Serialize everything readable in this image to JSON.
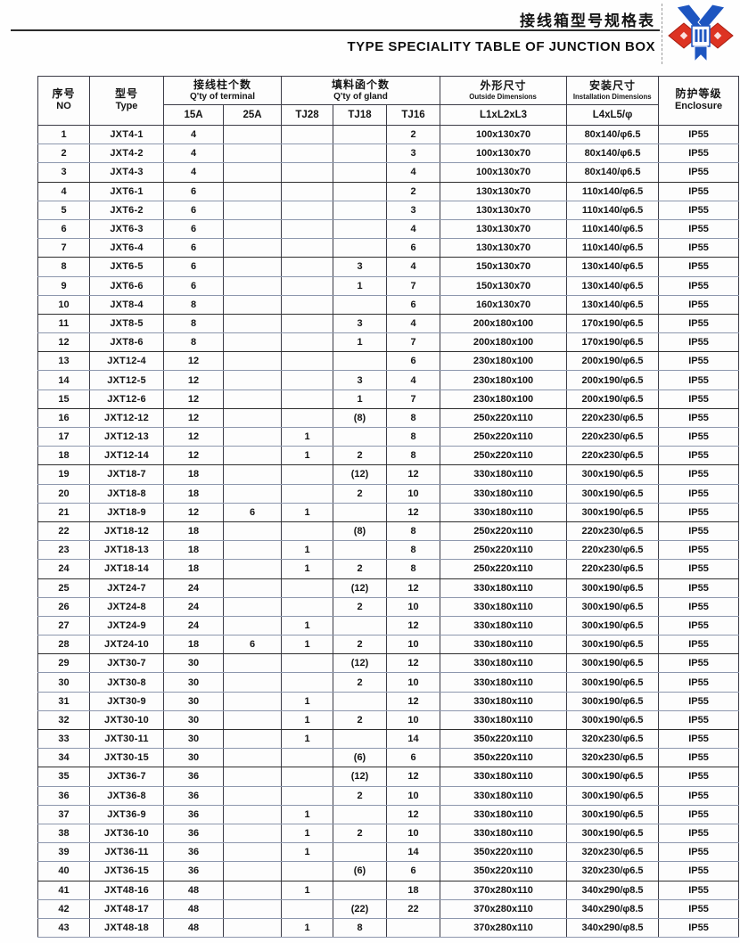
{
  "colors": {
    "text": "#141414",
    "grid_dark": "#3b3b46",
    "grid_light": "#8d97ad",
    "logo_red": "#dd3322",
    "logo_blue": "#1d55c0"
  },
  "header": {
    "title_zh": "接线箱型号规格表",
    "title_en": "TYPE SPECIALITY TABLE OF JUNCTION BOX",
    "logo_icon": "company-emblem"
  },
  "table": {
    "columns": {
      "no_zh": "序号",
      "no_en": "NO",
      "type_zh": "型号",
      "type_en": "Type",
      "terminal_zh": "接线柱个数",
      "terminal_en": "Q'ty of terminal",
      "terminal_subs": [
        "15A",
        "25A"
      ],
      "gland_zh": "填料函个数",
      "gland_en": "Q'ty of gland",
      "gland_subs": [
        "TJ28",
        "TJ18",
        "TJ16"
      ],
      "outside_zh": "外形尺寸",
      "outside_en": "Outside Dimensions",
      "outside_sub": "L1xL2xL3",
      "install_zh": "安装尺寸",
      "install_en": "Installation Dimensions",
      "install_sub": "L4xL5/φ",
      "enclosure_zh": "防护等级",
      "enclosure_en": "Enclosure"
    },
    "column_keys": [
      "no",
      "type",
      "15a",
      "25a",
      "tj28",
      "tj18",
      "tj16",
      "outside",
      "install",
      "enclosure"
    ],
    "heavy_border_after": [
      "3",
      "7",
      "10",
      "12",
      "15",
      "18",
      "21",
      "24",
      "28",
      "32",
      "34",
      "40"
    ],
    "rows": [
      [
        "1",
        "JXT4-1",
        "4",
        "",
        "",
        "",
        "2",
        "100x130x70",
        "80x140/φ6.5",
        "IP55"
      ],
      [
        "2",
        "JXT4-2",
        "4",
        "",
        "",
        "",
        "3",
        "100x130x70",
        "80x140/φ6.5",
        "IP55"
      ],
      [
        "3",
        "JXT4-3",
        "4",
        "",
        "",
        "",
        "4",
        "100x130x70",
        "80x140/φ6.5",
        "IP55"
      ],
      [
        "4",
        "JXT6-1",
        "6",
        "",
        "",
        "",
        "2",
        "130x130x70",
        "110x140/φ6.5",
        "IP55"
      ],
      [
        "5",
        "JXT6-2",
        "6",
        "",
        "",
        "",
        "3",
        "130x130x70",
        "110x140/φ6.5",
        "IP55"
      ],
      [
        "6",
        "JXT6-3",
        "6",
        "",
        "",
        "",
        "4",
        "130x130x70",
        "110x140/φ6.5",
        "IP55"
      ],
      [
        "7",
        "JXT6-4",
        "6",
        "",
        "",
        "",
        "6",
        "130x130x70",
        "110x140/φ6.5",
        "IP55"
      ],
      [
        "8",
        "JXT6-5",
        "6",
        "",
        "",
        "3",
        "4",
        "150x130x70",
        "130x140/φ6.5",
        "IP55"
      ],
      [
        "9",
        "JXT6-6",
        "6",
        "",
        "",
        "1",
        "7",
        "150x130x70",
        "130x140/φ6.5",
        "IP55"
      ],
      [
        "10",
        "JXT8-4",
        "8",
        "",
        "",
        "",
        "6",
        "160x130x70",
        "130x140/φ6.5",
        "IP55"
      ],
      [
        "11",
        "JXT8-5",
        "8",
        "",
        "",
        "3",
        "4",
        "200x180x100",
        "170x190/φ6.5",
        "IP55"
      ],
      [
        "12",
        "JXT8-6",
        "8",
        "",
        "",
        "1",
        "7",
        "200x180x100",
        "170x190/φ6.5",
        "IP55"
      ],
      [
        "13",
        "JXT12-4",
        "12",
        "",
        "",
        "",
        "6",
        "230x180x100",
        "200x190/φ6.5",
        "IP55"
      ],
      [
        "14",
        "JXT12-5",
        "12",
        "",
        "",
        "3",
        "4",
        "230x180x100",
        "200x190/φ6.5",
        "IP55"
      ],
      [
        "15",
        "JXT12-6",
        "12",
        "",
        "",
        "1",
        "7",
        "230x180x100",
        "200x190/φ6.5",
        "IP55"
      ],
      [
        "16",
        "JXT12-12",
        "12",
        "",
        "",
        "(8)",
        "8",
        "250x220x110",
        "220x230/φ6.5",
        "IP55"
      ],
      [
        "17",
        "JXT12-13",
        "12",
        "",
        "1",
        "",
        "8",
        "250x220x110",
        "220x230/φ6.5",
        "IP55"
      ],
      [
        "18",
        "JXT12-14",
        "12",
        "",
        "1",
        "2",
        "8",
        "250x220x110",
        "220x230/φ6.5",
        "IP55"
      ],
      [
        "19",
        "JXT18-7",
        "18",
        "",
        "",
        "(12)",
        "12",
        "330x180x110",
        "300x190/φ6.5",
        "IP55"
      ],
      [
        "20",
        "JXT18-8",
        "18",
        "",
        "",
        "2",
        "10",
        "330x180x110",
        "300x190/φ6.5",
        "IP55"
      ],
      [
        "21",
        "JXT18-9",
        "12",
        "6",
        "1",
        "",
        "12",
        "330x180x110",
        "300x190/φ6.5",
        "IP55"
      ],
      [
        "22",
        "JXT18-12",
        "18",
        "",
        "",
        "(8)",
        "8",
        "250x220x110",
        "220x230/φ6.5",
        "IP55"
      ],
      [
        "23",
        "JXT18-13",
        "18",
        "",
        "1",
        "",
        "8",
        "250x220x110",
        "220x230/φ6.5",
        "IP55"
      ],
      [
        "24",
        "JXT18-14",
        "18",
        "",
        "1",
        "2",
        "8",
        "250x220x110",
        "220x230/φ6.5",
        "IP55"
      ],
      [
        "25",
        "JXT24-7",
        "24",
        "",
        "",
        "(12)",
        "12",
        "330x180x110",
        "300x190/φ6.5",
        "IP55"
      ],
      [
        "26",
        "JXT24-8",
        "24",
        "",
        "",
        "2",
        "10",
        "330x180x110",
        "300x190/φ6.5",
        "IP55"
      ],
      [
        "27",
        "JXT24-9",
        "24",
        "",
        "1",
        "",
        "12",
        "330x180x110",
        "300x190/φ6.5",
        "IP55"
      ],
      [
        "28",
        "JXT24-10",
        "18",
        "6",
        "1",
        "2",
        "10",
        "330x180x110",
        "300x190/φ6.5",
        "IP55"
      ],
      [
        "29",
        "JXT30-7",
        "30",
        "",
        "",
        "(12)",
        "12",
        "330x180x110",
        "300x190/φ6.5",
        "IP55"
      ],
      [
        "30",
        "JXT30-8",
        "30",
        "",
        "",
        "2",
        "10",
        "330x180x110",
        "300x190/φ6.5",
        "IP55"
      ],
      [
        "31",
        "JXT30-9",
        "30",
        "",
        "1",
        "",
        "12",
        "330x180x110",
        "300x190/φ6.5",
        "IP55"
      ],
      [
        "32",
        "JXT30-10",
        "30",
        "",
        "1",
        "2",
        "10",
        "330x180x110",
        "300x190/φ6.5",
        "IP55"
      ],
      [
        "33",
        "JXT30-11",
        "30",
        "",
        "1",
        "",
        "14",
        "350x220x110",
        "320x230/φ6.5",
        "IP55"
      ],
      [
        "34",
        "JXT30-15",
        "30",
        "",
        "",
        "(6)",
        "6",
        "350x220x110",
        "320x230/φ6.5",
        "IP55"
      ],
      [
        "35",
        "JXT36-7",
        "36",
        "",
        "",
        "(12)",
        "12",
        "330x180x110",
        "300x190/φ6.5",
        "IP55"
      ],
      [
        "36",
        "JXT36-8",
        "36",
        "",
        "",
        "2",
        "10",
        "330x180x110",
        "300x190/φ6.5",
        "IP55"
      ],
      [
        "37",
        "JXT36-9",
        "36",
        "",
        "1",
        "",
        "12",
        "330x180x110",
        "300x190/φ6.5",
        "IP55"
      ],
      [
        "38",
        "JXT36-10",
        "36",
        "",
        "1",
        "2",
        "10",
        "330x180x110",
        "300x190/φ6.5",
        "IP55"
      ],
      [
        "39",
        "JXT36-11",
        "36",
        "",
        "1",
        "",
        "14",
        "350x220x110",
        "320x230/φ6.5",
        "IP55"
      ],
      [
        "40",
        "JXT36-15",
        "36",
        "",
        "",
        "(6)",
        "6",
        "350x220x110",
        "320x230/φ6.5",
        "IP55"
      ],
      [
        "41",
        "JXT48-16",
        "48",
        "",
        "1",
        "",
        "18",
        "370x280x110",
        "340x290/φ8.5",
        "IP55"
      ],
      [
        "42",
        "JXT48-17",
        "48",
        "",
        "",
        "(22)",
        "22",
        "370x280x110",
        "340x290/φ8.5",
        "IP55"
      ],
      [
        "43",
        "JXT48-18",
        "48",
        "",
        "1",
        "8",
        "",
        "370x280x110",
        "340x290/φ8.5",
        "IP55"
      ]
    ]
  }
}
